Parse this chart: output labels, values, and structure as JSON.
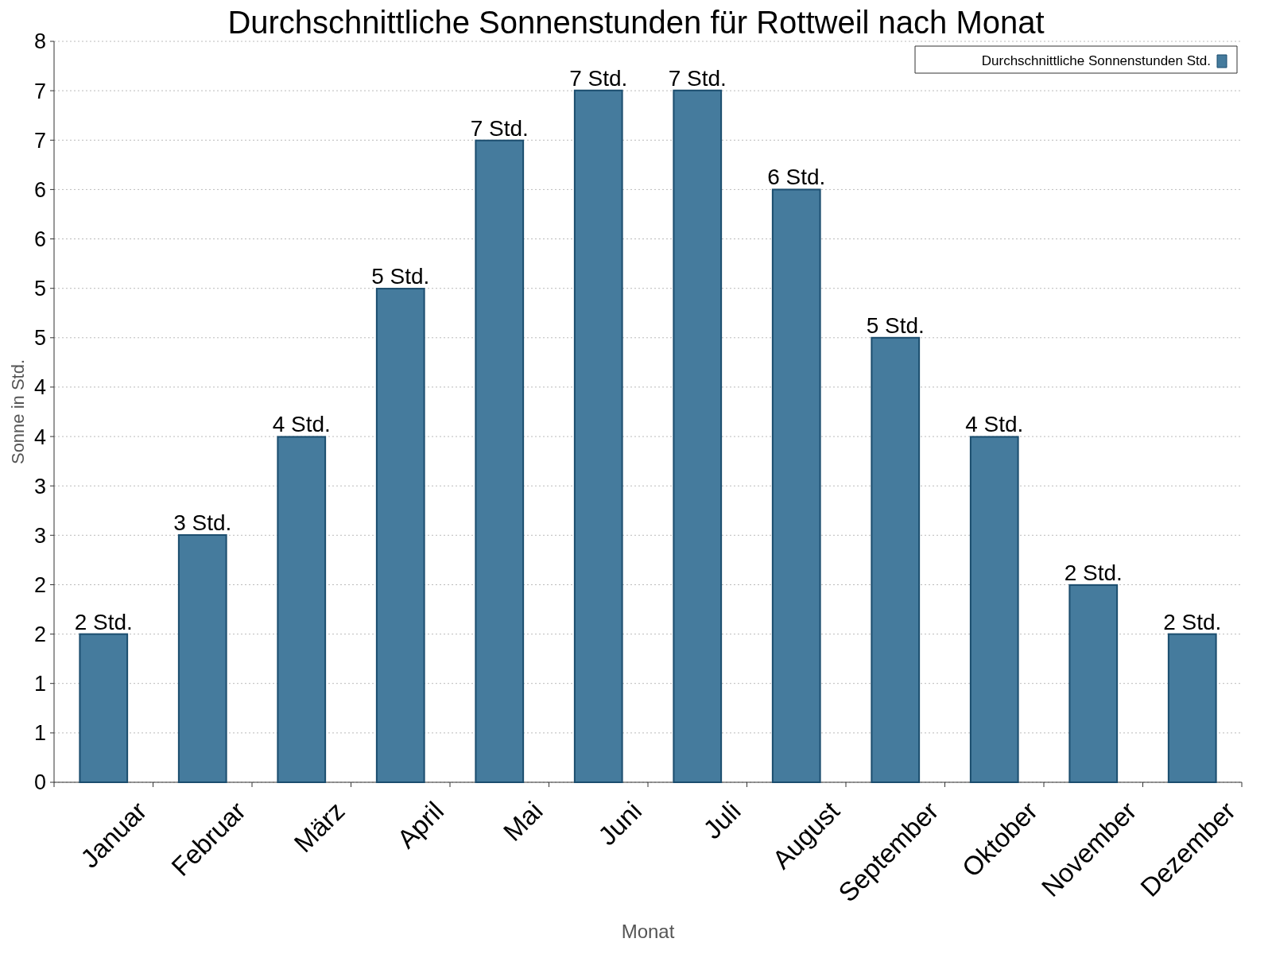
{
  "chart_data": {
    "type": "bar",
    "title": "Durchschnittliche Sonnenstunden für Rottweil nach Monat",
    "xlabel": "Monat",
    "ylabel": "Sonne in Std.",
    "categories": [
      "Januar",
      "Februar",
      "März",
      "April",
      "Mai",
      "Juni",
      "Juli",
      "August",
      "September",
      "Oktober",
      "November",
      "Dezember"
    ],
    "series": [
      {
        "name": "Durchschnittliche Sonnenstunden Std.",
        "color": "#457b9d",
        "values": [
          1.6,
          2.67,
          3.73,
          5.33,
          6.93,
          7.47,
          7.47,
          6.4,
          4.8,
          3.73,
          2.13,
          1.6
        ],
        "value_labels": [
          "2 Std.",
          "3 Std.",
          "4 Std.",
          "5 Std.",
          "7 Std.",
          "7 Std.",
          "7 Std.",
          "6 Std.",
          "5 Std.",
          "4 Std.",
          "2 Std.",
          "2 Std."
        ]
      }
    ],
    "ylim": [
      0,
      8
    ],
    "yticks": [
      0,
      {
        "value": 0.533,
        "label": "1"
      },
      {
        "value": 1.067,
        "label": "1"
      },
      {
        "value": 1.6,
        "label": "2"
      },
      {
        "value": 2.133,
        "label": "2"
      },
      {
        "value": 2.667,
        "label": "3"
      },
      {
        "value": 3.2,
        "label": "3"
      },
      {
        "value": 3.733,
        "label": "4"
      },
      {
        "value": 4.267,
        "label": "4"
      },
      {
        "value": 4.8,
        "label": "5"
      },
      {
        "value": 5.333,
        "label": "5"
      },
      {
        "value": 5.867,
        "label": "6"
      },
      {
        "value": 6.4,
        "label": "6"
      },
      {
        "value": 6.933,
        "label": "7"
      },
      {
        "value": 7.467,
        "label": "7"
      },
      8
    ],
    "grid": "y",
    "legend": "top right"
  }
}
